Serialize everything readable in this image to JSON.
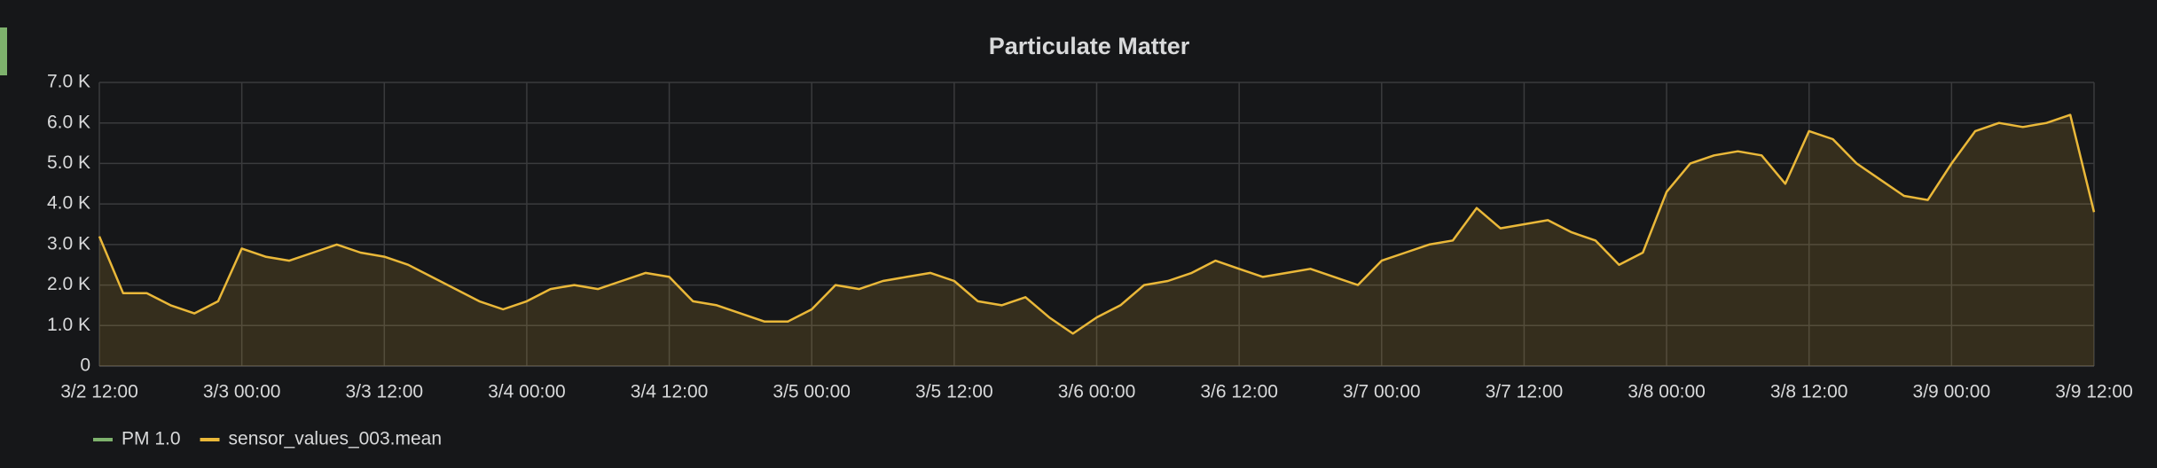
{
  "chart_data": {
    "type": "line",
    "title": "Particulate Matter",
    "x": [
      "3/2 12:00",
      "3/2 14:00",
      "3/2 16:00",
      "3/2 18:00",
      "3/2 20:00",
      "3/2 22:00",
      "3/3 00:00",
      "3/3 02:00",
      "3/3 04:00",
      "3/3 06:00",
      "3/3 08:00",
      "3/3 10:00",
      "3/3 12:00",
      "3/3 14:00",
      "3/3 16:00",
      "3/3 18:00",
      "3/3 20:00",
      "3/3 22:00",
      "3/4 00:00",
      "3/4 02:00",
      "3/4 04:00",
      "3/4 06:00",
      "3/4 08:00",
      "3/4 10:00",
      "3/4 12:00",
      "3/4 14:00",
      "3/4 16:00",
      "3/4 18:00",
      "3/4 20:00",
      "3/4 22:00",
      "3/5 00:00",
      "3/5 02:00",
      "3/5 04:00",
      "3/5 06:00",
      "3/5 08:00",
      "3/5 10:00",
      "3/5 12:00",
      "3/5 14:00",
      "3/5 16:00",
      "3/5 18:00",
      "3/5 20:00",
      "3/5 22:00",
      "3/6 00:00",
      "3/6 02:00",
      "3/6 04:00",
      "3/6 06:00",
      "3/6 08:00",
      "3/6 10:00",
      "3/6 12:00",
      "3/6 14:00",
      "3/6 16:00",
      "3/6 18:00",
      "3/6 20:00",
      "3/6 22:00",
      "3/7 00:00",
      "3/7 02:00",
      "3/7 04:00",
      "3/7 06:00",
      "3/7 08:00",
      "3/7 10:00",
      "3/7 12:00",
      "3/7 14:00",
      "3/7 16:00",
      "3/7 18:00",
      "3/7 20:00",
      "3/7 22:00",
      "3/8 00:00",
      "3/8 02:00",
      "3/8 04:00",
      "3/8 06:00",
      "3/8 08:00",
      "3/8 10:00",
      "3/8 12:00",
      "3/8 14:00",
      "3/8 16:00",
      "3/8 18:00",
      "3/8 20:00",
      "3/8 22:00",
      "3/9 00:00",
      "3/9 02:00",
      "3/9 04:00",
      "3/9 06:00",
      "3/9 08:00",
      "3/9 10:00",
      "3/9 12:00"
    ],
    "series": [
      {
        "name": "PM 1.0",
        "color": "#7eb26d",
        "values": [
          null,
          null,
          null,
          null,
          null,
          null,
          null,
          null,
          null,
          null,
          null,
          null,
          null,
          null,
          null,
          null,
          null,
          null,
          null,
          null,
          null,
          null,
          null,
          null,
          null,
          null,
          null,
          null,
          null,
          null,
          null,
          null,
          null,
          null,
          null,
          null,
          null,
          null,
          null,
          null,
          null,
          null,
          null,
          null,
          null,
          null,
          null,
          null,
          null,
          null,
          null,
          null,
          null,
          null,
          null,
          null,
          null,
          null,
          null,
          null,
          null,
          null,
          null,
          null,
          null,
          null,
          null,
          null,
          null,
          null,
          null,
          null,
          null,
          null,
          null,
          null,
          null,
          null,
          null,
          null,
          null,
          null,
          null,
          null,
          null
        ]
      },
      {
        "name": "sensor_values_003.mean",
        "color": "#eab839",
        "values": [
          3200,
          1800,
          1800,
          1500,
          1300,
          1600,
          2900,
          2700,
          2600,
          2800,
          3000,
          2800,
          2700,
          2500,
          2200,
          1900,
          1600,
          1400,
          1600,
          1900,
          2000,
          1900,
          2100,
          2300,
          2200,
          1600,
          1500,
          1300,
          1100,
          1100,
          1400,
          2000,
          1900,
          2100,
          2200,
          2300,
          2100,
          1600,
          1500,
          1700,
          1200,
          800,
          1200,
          1500,
          2000,
          2100,
          2300,
          2600,
          2400,
          2200,
          2300,
          2400,
          2200,
          2000,
          2600,
          2800,
          3000,
          3100,
          3900,
          3400,
          3500,
          3600,
          3300,
          3100,
          2500,
          2800,
          4300,
          5000,
          5200,
          5300,
          5200,
          4500,
          5800,
          5600,
          5000,
          4600,
          4200,
          4100,
          5000,
          5800,
          6000,
          5900,
          6000,
          6200,
          3800
        ]
      }
    ],
    "xlim": [
      "3/2 12:00",
      "3/9 12:00"
    ],
    "xticks": [
      "3/2 12:00",
      "3/3 00:00",
      "3/3 12:00",
      "3/4 00:00",
      "3/4 12:00",
      "3/5 00:00",
      "3/5 12:00",
      "3/6 00:00",
      "3/6 12:00",
      "3/7 00:00",
      "3/7 12:00",
      "3/8 00:00",
      "3/8 12:00",
      "3/9 00:00",
      "3/9 12:00"
    ],
    "ylim": [
      0,
      7000
    ],
    "yticks": [
      0,
      {
        "value": 1000,
        "label": "1.0 K"
      },
      {
        "value": 2000,
        "label": "2.0 K"
      },
      {
        "value": 3000,
        "label": "3.0 K"
      },
      {
        "value": 4000,
        "label": "4.0 K"
      },
      {
        "value": 5000,
        "label": "5.0 K"
      },
      {
        "value": 6000,
        "label": "6.0 K"
      },
      {
        "value": 7000,
        "label": "7.0 K"
      }
    ],
    "grid": true,
    "fill": true,
    "legend": "bottom-left"
  }
}
